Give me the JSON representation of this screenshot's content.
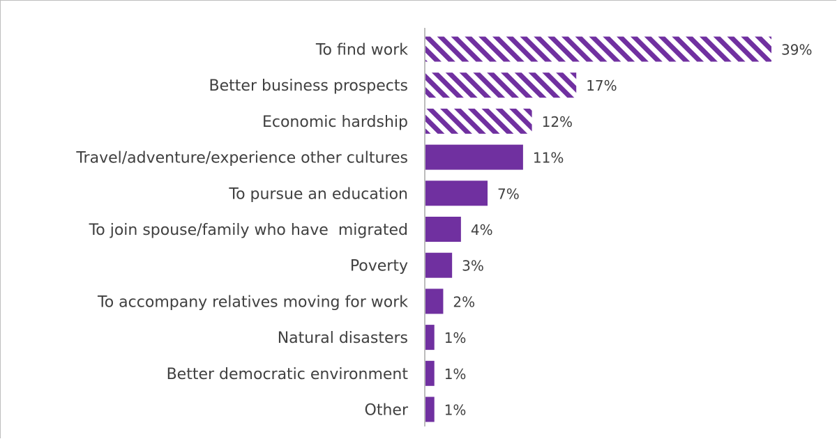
{
  "chart_data": {
    "type": "bar",
    "orientation": "horizontal",
    "title": "",
    "xlabel": "",
    "ylabel": "",
    "categories": [
      "To find work",
      "Better business prospects",
      "Economic hardship",
      "Travel/adventure/experience other cultures",
      "To pursue an education",
      "To join spouse/family who have  migrated",
      "Poverty",
      "To accompany relatives moving for work",
      "Natural disasters",
      "Better democratic environment",
      "Other"
    ],
    "values": [
      39,
      17,
      12,
      11,
      7,
      4,
      3,
      2,
      1,
      1,
      1
    ],
    "value_labels": [
      "39%",
      "17%",
      "12%",
      "11%",
      "7%",
      "4%",
      "3%",
      "2%",
      "1%",
      "1%",
      "1%"
    ],
    "unit": "%",
    "xlim": [
      0,
      39
    ],
    "grid": false,
    "legend": "none",
    "bar_styles": [
      "hatched",
      "hatched",
      "hatched",
      "solid",
      "solid",
      "solid",
      "solid",
      "solid",
      "solid",
      "solid",
      "solid"
    ],
    "colors": {
      "bar": "#7030a0",
      "hatch_background": "#ffffff",
      "text": "#404040",
      "axis": "#a6a6a6"
    }
  }
}
